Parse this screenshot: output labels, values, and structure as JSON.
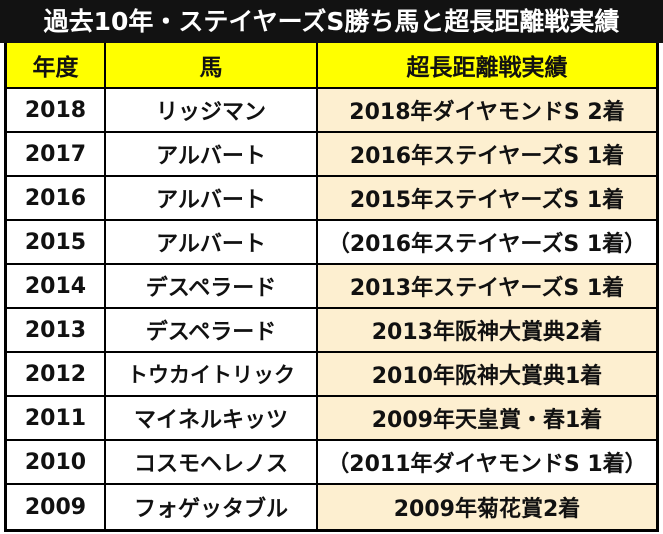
{
  "title": "過去10年・ステイヤーズS勝ち馬と超長距離戦実績",
  "colors": {
    "title_bg": "#121212",
    "title_text": "#ffffff",
    "header_bg": "#ffff00",
    "highlight_bg": "#fdefd0",
    "plain_bg": "#ffffff",
    "border": "#000000"
  },
  "table": {
    "headers": [
      "年度",
      "馬",
      "超長距離戦実績"
    ],
    "rows": [
      {
        "year": "2018",
        "horse": "リッジマン",
        "record": "2018年ダイヤモンドS 2着",
        "highlight": true
      },
      {
        "year": "2017",
        "horse": "アルバート",
        "record": "2016年ステイヤーズS 1着",
        "highlight": true
      },
      {
        "year": "2016",
        "horse": "アルバート",
        "record": "2015年ステイヤーズS 1着",
        "highlight": true
      },
      {
        "year": "2015",
        "horse": "アルバート",
        "record": "（2016年ステイヤーズS 1着）",
        "highlight": false
      },
      {
        "year": "2014",
        "horse": "デスペラード",
        "record": "2013年ステイヤーズS 1着",
        "highlight": true
      },
      {
        "year": "2013",
        "horse": "デスペラード",
        "record": "2013年阪神大賞典2着",
        "highlight": true
      },
      {
        "year": "2012",
        "horse": "トウカイトリック",
        "record": "2010年阪神大賞典1着",
        "highlight": true
      },
      {
        "year": "2011",
        "horse": "マイネルキッツ",
        "record": "2009年天皇賞・春1着",
        "highlight": true
      },
      {
        "year": "2010",
        "horse": "コスモヘレノス",
        "record": "（2011年ダイヤモンドS 1着）",
        "highlight": false
      },
      {
        "year": "2009",
        "horse": "フォゲッタブル",
        "record": "2009年菊花賞2着",
        "highlight": true
      }
    ]
  }
}
